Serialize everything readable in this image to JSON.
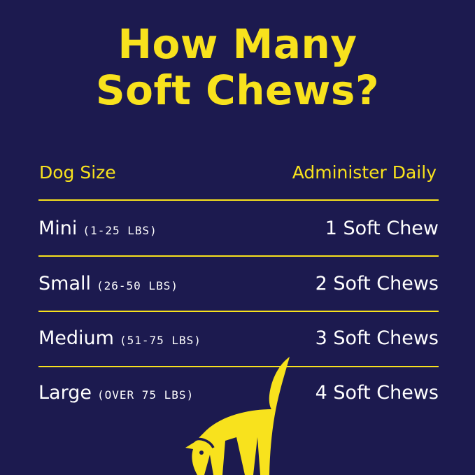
{
  "title": {
    "line1": "How Many",
    "line2": "Soft Chews?"
  },
  "table": {
    "headers": {
      "size": "Dog Size",
      "dose": "Administer Daily"
    },
    "rows": [
      {
        "size": "Mini",
        "range": "(1-25 LBS)",
        "dose": "1 Soft Chew"
      },
      {
        "size": "Small",
        "range": "(26-50 LBS)",
        "dose": "2 Soft Chews"
      },
      {
        "size": "Medium",
        "range": "(51-75 LBS)",
        "dose": "3 Soft Chews"
      },
      {
        "size": "Large",
        "range": "(OVER 75 LBS)",
        "dose": "4 Soft Chews"
      }
    ]
  },
  "colors": {
    "background": "#1c1a4f",
    "accent": "#f8e21d",
    "text": "#ffffff"
  },
  "illustration": "dog-silhouette-icon"
}
